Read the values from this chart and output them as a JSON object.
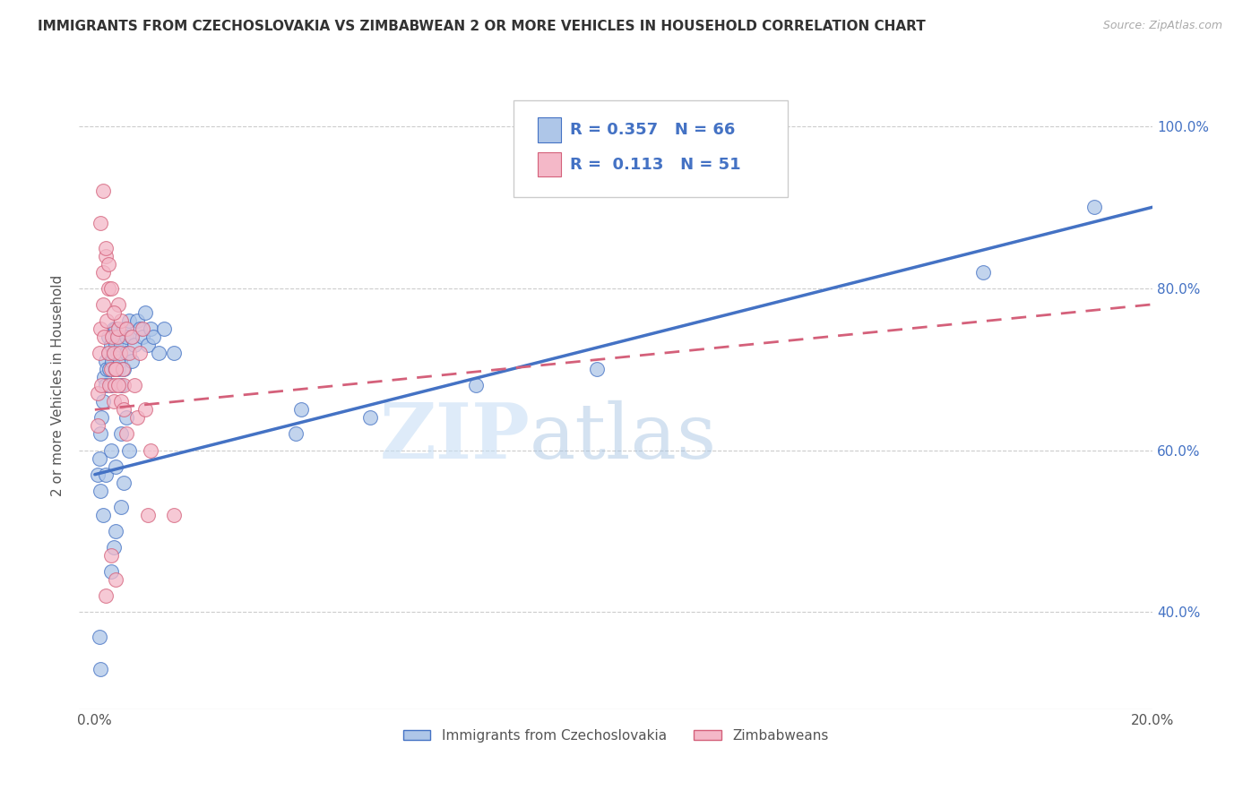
{
  "title": "IMMIGRANTS FROM CZECHOSLOVAKIA VS ZIMBABWEAN 2 OR MORE VEHICLES IN HOUSEHOLD CORRELATION CHART",
  "source": "Source: ZipAtlas.com",
  "ylabel": "2 or more Vehicles in Household",
  "x_tick_labels": [
    "0.0%",
    "",
    "",
    "",
    "",
    "",
    "",
    "",
    "",
    "",
    "20.0%"
  ],
  "x_tick_values": [
    0.0,
    2.0,
    4.0,
    6.0,
    8.0,
    10.0,
    12.0,
    14.0,
    16.0,
    18.0,
    20.0
  ],
  "y_tick_labels_right": [
    "40.0%",
    "60.0%",
    "80.0%",
    "100.0%"
  ],
  "y_tick_values": [
    40.0,
    60.0,
    80.0,
    100.0
  ],
  "xlim": [
    -0.3,
    20.0
  ],
  "ylim": [
    28.0,
    108.0
  ],
  "legend_label_1": "Immigrants from Czechoslovakia",
  "legend_label_2": "Zimbabweans",
  "R1": "0.357",
  "N1": "66",
  "R2": "0.113",
  "N2": "51",
  "color_blue": "#aec6e8",
  "color_pink": "#f4b8c8",
  "line_blue": "#4472c4",
  "line_pink": "#d4607a",
  "watermark_zip": "ZIP",
  "watermark_atlas": "atlas",
  "blue_x": [
    0.05,
    0.08,
    0.1,
    0.12,
    0.15,
    0.18,
    0.2,
    0.2,
    0.22,
    0.25,
    0.25,
    0.28,
    0.3,
    0.3,
    0.32,
    0.35,
    0.35,
    0.38,
    0.4,
    0.4,
    0.42,
    0.45,
    0.45,
    0.48,
    0.5,
    0.5,
    0.55,
    0.55,
    0.6,
    0.6,
    0.65,
    0.7,
    0.7,
    0.75,
    0.8,
    0.85,
    0.9,
    0.95,
    1.0,
    1.05,
    1.1,
    1.2,
    1.3,
    1.5,
    0.1,
    0.15,
    0.2,
    0.3,
    0.4,
    0.5,
    0.6,
    0.3,
    0.35,
    0.4,
    0.5,
    0.55,
    0.65,
    3.8,
    3.9,
    5.2,
    7.2,
    9.5,
    16.8,
    18.9,
    0.08,
    0.1
  ],
  "blue_y": [
    57.0,
    59.0,
    62.0,
    64.0,
    66.0,
    69.0,
    68.0,
    71.0,
    70.0,
    72.0,
    74.0,
    70.0,
    68.0,
    73.0,
    71.0,
    75.0,
    72.0,
    70.0,
    73.0,
    75.0,
    72.0,
    70.0,
    74.0,
    71.0,
    68.0,
    73.0,
    70.0,
    75.0,
    72.0,
    74.0,
    76.0,
    74.0,
    71.0,
    73.0,
    76.0,
    75.0,
    74.0,
    77.0,
    73.0,
    75.0,
    74.0,
    72.0,
    75.0,
    72.0,
    55.0,
    52.0,
    57.0,
    60.0,
    58.0,
    62.0,
    64.0,
    45.0,
    48.0,
    50.0,
    53.0,
    56.0,
    60.0,
    62.0,
    65.0,
    64.0,
    68.0,
    70.0,
    82.0,
    90.0,
    37.0,
    33.0
  ],
  "pink_x": [
    0.05,
    0.05,
    0.08,
    0.1,
    0.12,
    0.15,
    0.15,
    0.18,
    0.2,
    0.22,
    0.25,
    0.25,
    0.28,
    0.3,
    0.32,
    0.35,
    0.35,
    0.38,
    0.4,
    0.42,
    0.45,
    0.45,
    0.48,
    0.5,
    0.52,
    0.55,
    0.6,
    0.65,
    0.7,
    0.75,
    0.8,
    0.85,
    0.9,
    0.95,
    1.0,
    1.05,
    0.1,
    0.15,
    0.2,
    0.25,
    0.3,
    0.35,
    0.4,
    0.45,
    0.5,
    0.55,
    0.6,
    0.4,
    0.3,
    0.2,
    1.5
  ],
  "pink_y": [
    63.0,
    67.0,
    72.0,
    75.0,
    68.0,
    78.0,
    82.0,
    74.0,
    84.0,
    76.0,
    80.0,
    72.0,
    68.0,
    70.0,
    74.0,
    66.0,
    72.0,
    68.0,
    70.0,
    74.0,
    75.0,
    78.0,
    72.0,
    76.0,
    70.0,
    68.0,
    75.0,
    72.0,
    74.0,
    68.0,
    64.0,
    72.0,
    75.0,
    65.0,
    52.0,
    60.0,
    88.0,
    92.0,
    85.0,
    83.0,
    80.0,
    77.0,
    70.0,
    68.0,
    66.0,
    65.0,
    62.0,
    44.0,
    47.0,
    42.0,
    52.0
  ]
}
